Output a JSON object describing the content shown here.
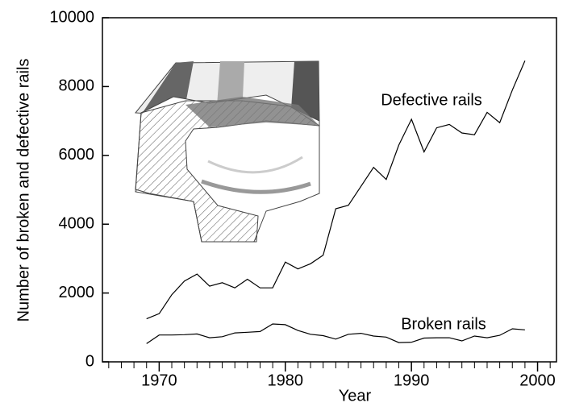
{
  "chart_data": {
    "type": "line",
    "xlabel": "Year",
    "ylabel": "Number of broken and defective rails",
    "x": [
      1969,
      1970,
      1971,
      1972,
      1973,
      1974,
      1975,
      1976,
      1977,
      1978,
      1979,
      1980,
      1981,
      1982,
      1983,
      1984,
      1985,
      1986,
      1987,
      1988,
      1989,
      1990,
      1991,
      1992,
      1993,
      1994,
      1995,
      1996,
      1997,
      1998,
      1999
    ],
    "series": [
      {
        "name": "Defective rails",
        "color": "#000000",
        "values": [
          1250,
          1400,
          1950,
          2350,
          2550,
          2200,
          2300,
          2150,
          2400,
          2150,
          2150,
          2900,
          2700,
          2850,
          3100,
          4450,
          4550,
          5100,
          5650,
          5300,
          6300,
          7050,
          6100,
          6800,
          6900,
          6650,
          6600,
          7250,
          6950,
          7900,
          8750
        ]
      },
      {
        "name": "Broken rails",
        "color": "#000000",
        "values": [
          530,
          780,
          780,
          790,
          810,
          700,
          730,
          840,
          860,
          880,
          1100,
          1080,
          910,
          800,
          760,
          660,
          800,
          830,
          750,
          720,
          560,
          570,
          690,
          700,
          700,
          610,
          750,
          700,
          770,
          960,
          930
        ]
      }
    ],
    "xlim": [
      1965.5,
      2001.5
    ],
    "xticks": [
      1970,
      1980,
      1990,
      2000
    ],
    "xminor_ticks": [
      1966,
      1967,
      1968,
      1969,
      1971,
      1972,
      1973,
      1974,
      1975,
      1976,
      1977,
      1978,
      1979,
      1981,
      1982,
      1983,
      1984,
      1985,
      1986,
      1987,
      1988,
      1989,
      1991,
      1992,
      1993,
      1994,
      1995,
      1996,
      1997,
      1998,
      1999,
      2001
    ],
    "ylim": [
      0,
      10000
    ],
    "yticks": [
      0,
      2000,
      4000,
      6000,
      8000,
      10000
    ],
    "grid": false
  }
}
